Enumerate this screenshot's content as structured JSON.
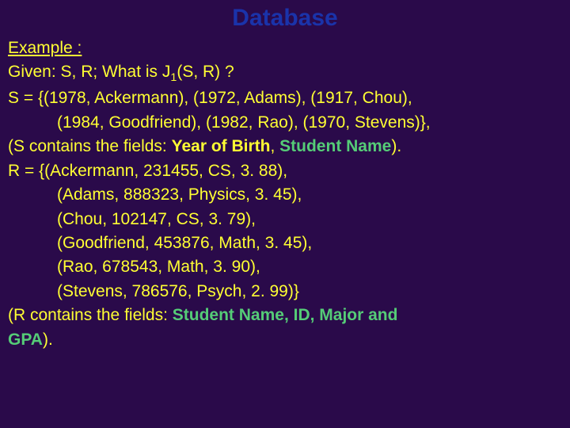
{
  "title": "Database",
  "title_color": "#1a33aa",
  "text_color": "#ffff33",
  "highlight_color": "#55cc77",
  "background_color": "#2a0a4a",
  "font_family": "Verdana",
  "title_fontsize": 30,
  "body_fontsize": 21,
  "example_label": "Example :",
  "given_prefix": "Given: S, R; What is J",
  "given_sub": "1",
  "given_suffix": "(S, R) ?",
  "s_line1": "S = {(1978, Ackermann), (1972, Adams), (1917, Chou),",
  "s_line2": "(1984, Goodfriend), (1982, Rao), (1970, Stevens)},",
  "s_contains_prefix": "(S contains the fields: ",
  "s_field1": "Year of Birth",
  "s_sep": ", ",
  "s_field2": "Student Name",
  "s_contains_suffix": ").",
  "r_line1": "R = {(Ackermann, 231455, CS, 3. 88),",
  "r_line2": "(Adams, 888323, Physics, 3. 45),",
  "r_line3": "(Chou, 102147, CS, 3. 79),",
  "r_line4": "(Goodfriend, 453876, Math, 3. 45),",
  "r_line5": "(Rao, 678543, Math, 3. 90),",
  "r_line6": "(Stevens, 786576, Psych, 2. 99)}",
  "r_contains_prefix": "(R contains the fields: ",
  "r_fields": "Student Name, ID, Major and",
  "r_contains_tail": "GPA",
  "r_contains_suffix": ")."
}
